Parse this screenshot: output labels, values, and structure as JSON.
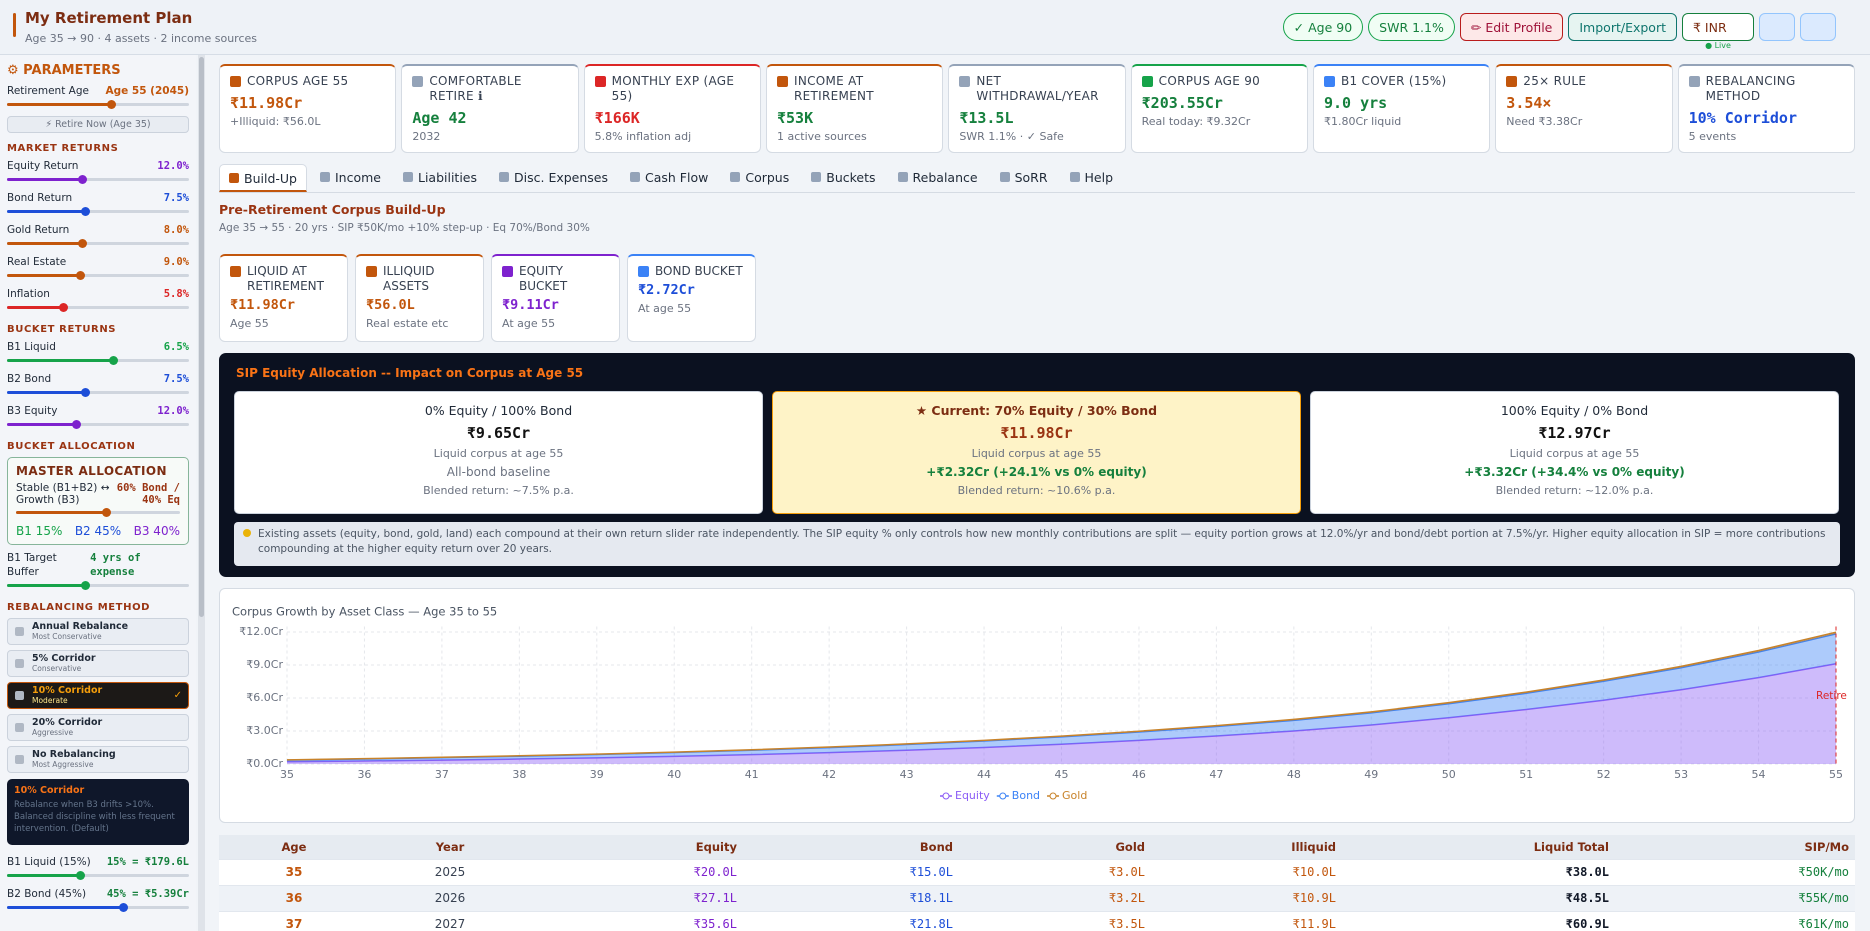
{
  "header": {
    "title": "My Retirement Plan",
    "subtitle": "Age 35 → 90 · 4 assets · 2 income sources",
    "badges": [
      "✓ Age 90",
      "SWR 1.1%"
    ],
    "buttons": [
      "✏ Edit Profile",
      "Import/Export"
    ],
    "currency": "₹ INR",
    "live": "● Live"
  },
  "sidebar": {
    "title": "⚙ PARAMETERS",
    "retire_label": "Retirement Age",
    "retire_value": "Age 55 (2045)",
    "retire_button": "⚡ Retire Now (Age 35)",
    "groups": [
      {
        "heading": "MARKET RETURNS",
        "sliders": [
          {
            "label": "Equity Return",
            "value": "12.0%"
          },
          {
            "label": "Bond Return",
            "value": "7.5%"
          },
          {
            "label": "Gold Return",
            "value": "8.0%"
          },
          {
            "label": "Real Estate",
            "value": "9.0%"
          },
          {
            "label": "Inflation",
            "value": "5.8%"
          }
        ]
      },
      {
        "heading": "BUCKET RETURNS",
        "sliders": [
          {
            "label": "B1 Liquid",
            "value": "6.5%"
          },
          {
            "label": "B2 Bond",
            "value": "7.5%"
          },
          {
            "label": "B3 Equity",
            "value": "12.0%"
          }
        ]
      }
    ],
    "allocation": {
      "heading": "BUCKET ALLOCATION",
      "title": "MASTER ALLOCATION",
      "left": "Stable (B1+B2) ↔ Growth (B3)",
      "right": "60% Bond / 40% Eq",
      "chips": [
        "B1 15%",
        "B2 45%",
        "B3 40%"
      ]
    },
    "buffer": {
      "label": "B1 Target Buffer",
      "value": "4 yrs of expense"
    },
    "rebalancing": {
      "heading": "REBALANCING METHOD",
      "options": [
        {
          "name": "Annual Rebalance",
          "note": "Most Conservative"
        },
        {
          "name": "5% Corridor",
          "note": "Conservative"
        },
        {
          "name": "10% Corridor",
          "note": "Moderate",
          "check": "✓"
        },
        {
          "name": "20% Corridor",
          "note": "Aggressive"
        },
        {
          "name": "No Rebalancing",
          "note": "Most Aggressive"
        }
      ],
      "info_title": "10% Corridor",
      "info_text": "Rebalance when B3 drifts >10%. Balanced discipline with less frequent intervention. (Default)"
    },
    "bucket_targets": [
      {
        "label": "B1 Liquid (15%)",
        "value": "15% = ₹179.6L"
      },
      {
        "label": "B2 Bond (45%)",
        "value": "45% = ₹5.39Cr"
      }
    ]
  },
  "kpis": [
    {
      "label": "CORPUS AGE 55",
      "value": "₹11.98Cr",
      "sub": "+Illiquid: ₹56.0L"
    },
    {
      "label": "COMFORTABLE RETIRE ℹ",
      "value": "Age 42",
      "sub": "2032"
    },
    {
      "label": "MONTHLY EXP (AGE 55)",
      "value": "₹166K",
      "sub": "5.8% inflation adj"
    },
    {
      "label": "INCOME AT RETIREMENT",
      "value": "₹53K",
      "sub": "1 active sources"
    },
    {
      "label": "NET WITHDRAWAL/YEAR",
      "value": "₹13.5L",
      "sub": "SWR 1.1% · ✓ Safe"
    },
    {
      "label": "CORPUS AGE 90",
      "value": "₹203.55Cr",
      "sub": "Real today: ₹9.32Cr"
    },
    {
      "label": "B1 COVER (15%)",
      "value": "9.0 yrs",
      "sub": "₹1.80Cr liquid"
    },
    {
      "label": "25× RULE",
      "value": "3.54×",
      "sub": "Need ₹3.38Cr"
    },
    {
      "label": "REBALANCING METHOD",
      "value": "10% Corridor",
      "sub": "5 events"
    }
  ],
  "tabs": [
    "Build-Up",
    "Income",
    "Liabilities",
    "Disc. Expenses",
    "Cash Flow",
    "Corpus",
    "Buckets",
    "Rebalance",
    "SoRR",
    "Help"
  ],
  "buildup": {
    "title": "Pre-Retirement Corpus Build-Up",
    "subtitle": "Age 35 → 55 · 20 yrs · SIP ₹50K/mo +10% step-up · Eq 70%/Bond 30%",
    "cards": [
      {
        "label": "LIQUID AT RETIREMENT",
        "value": "₹11.98Cr",
        "sub": "Age 55"
      },
      {
        "label": "ILLIQUID ASSETS",
        "value": "₹56.0L",
        "sub": "Real estate etc"
      },
      {
        "label": "EQUITY BUCKET",
        "value": "₹9.11Cr",
        "sub": "At age 55"
      },
      {
        "label": "BOND BUCKET",
        "value": "₹2.72Cr",
        "sub": "At age 55"
      }
    ]
  },
  "sip": {
    "title": "SIP Equity Allocation -- Impact on Corpus at Age 55",
    "options": [
      {
        "title": "0% Equity / 100% Bond",
        "value": "₹9.65Cr",
        "caption": "Liquid corpus at age 55",
        "detail": "All-bond baseline",
        "blend": "Blended return: ~7.5% p.a."
      },
      {
        "title": "★ Current: 70% Equity / 30% Bond",
        "value": "₹11.98Cr",
        "caption": "Liquid corpus at age 55",
        "detail": "+₹2.32Cr (+24.1% vs 0% equity)",
        "blend": "Blended return: ~10.6% p.a."
      },
      {
        "title": "100% Equity / 0% Bond",
        "value": "₹12.97Cr",
        "caption": "Liquid corpus at age 55",
        "detail": "+₹3.32Cr (+34.4% vs 0% equity)",
        "blend": "Blended return: ~12.0% p.a."
      }
    ],
    "note": "Existing assets (equity, bond, gold, land) each compound at their own return slider rate independently. The SIP equity % only controls how new monthly contributions are split — equity portion grows at 12.0%/yr and bond/debt portion at 7.5%/yr. Higher equity allocation in SIP = more contributions compounding at the higher equity return over 20 years."
  },
  "chart_data": {
    "type": "area",
    "stacked": true,
    "title": "Corpus Growth by Asset Class — Age 35 to 55",
    "annotation": "Retire",
    "x": [
      35,
      36,
      37,
      38,
      39,
      40,
      41,
      42,
      43,
      44,
      45,
      46,
      47,
      48,
      49,
      50,
      51,
      52,
      53,
      54,
      55
    ],
    "xlim": [
      35,
      55
    ],
    "xticks": [
      35,
      36,
      37,
      38,
      39,
      40,
      41,
      42,
      43,
      44,
      45,
      46,
      47,
      48,
      49,
      50,
      51,
      52,
      53,
      54,
      55
    ],
    "ylim": [
      0,
      12.5
    ],
    "yticks": [
      {
        "value": 0,
        "label": "₹0.0Cr"
      },
      {
        "value": 3,
        "label": "₹3.0Cr"
      },
      {
        "value": 6,
        "label": "₹6.0Cr"
      },
      {
        "value": 9,
        "label": "₹9.0Cr"
      },
      {
        "value": 12,
        "label": "₹12.0Cr"
      }
    ],
    "grid": true,
    "series": [
      {
        "name": "Equity",
        "color": "#8b5cf6",
        "values": [
          0.2,
          0.271,
          0.356,
          0.45,
          0.56,
          0.69,
          0.85,
          1.03,
          1.25,
          1.5,
          1.8,
          2.15,
          2.55,
          3.0,
          3.55,
          4.2,
          4.95,
          5.8,
          6.75,
          7.85,
          9.11
        ]
      },
      {
        "name": "Bond",
        "color": "#3b82f6",
        "values": [
          0.15,
          0.181,
          0.218,
          0.26,
          0.3,
          0.35,
          0.4,
          0.46,
          0.52,
          0.59,
          0.67,
          0.76,
          0.86,
          0.97,
          1.1,
          1.28,
          1.48,
          1.72,
          2.0,
          2.33,
          2.72
        ]
      },
      {
        "name": "Gold",
        "color": "#c8832a",
        "values": [
          0.03,
          0.032,
          0.035,
          0.038,
          0.041,
          0.044,
          0.048,
          0.052,
          0.056,
          0.06,
          0.065,
          0.07,
          0.076,
          0.082,
          0.089,
          0.096,
          0.104,
          0.113,
          0.122,
          0.135,
          0.15
        ]
      }
    ]
  },
  "table": {
    "columns": [
      "Age",
      "Year",
      "Equity",
      "Bond",
      "Gold",
      "Illiquid",
      "Liquid Total",
      "SIP/Mo"
    ],
    "rows": [
      [
        "35",
        "2025",
        "₹20.0L",
        "₹15.0L",
        "₹3.0L",
        "₹10.0L",
        "₹38.0L",
        "₹50K/mo"
      ],
      [
        "36",
        "2026",
        "₹27.1L",
        "₹18.1L",
        "₹3.2L",
        "₹10.9L",
        "₹48.5L",
        "₹55K/mo"
      ],
      [
        "37",
        "2027",
        "₹35.6L",
        "₹21.8L",
        "₹3.5L",
        "₹11.9L",
        "₹60.9L",
        "₹61K/mo"
      ]
    ]
  }
}
